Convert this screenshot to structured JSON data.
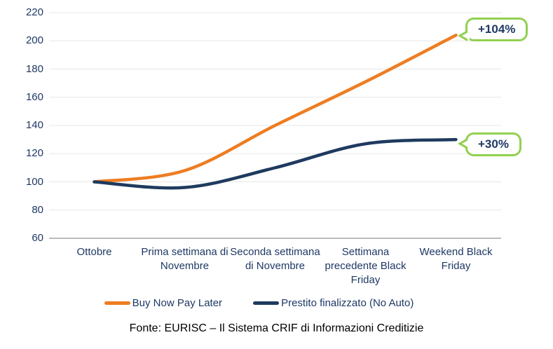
{
  "chart_data": {
    "type": "line",
    "categories": [
      "Ottobre",
      "Prima settimana di Novembre",
      "Seconda settimana di Novembre",
      "Settimana precedente Black Friday",
      "Weekend Black Friday"
    ],
    "xtick_labels": [
      "Ottobre",
      "Prima settimana di\nNovembre",
      "Seconda settimana\ndi Novembre",
      "Settimana\nprecedente Black\nFriday",
      "Weekend Black\nFriday"
    ],
    "series": [
      {
        "name": "Buy Now Pay Later",
        "color": "#EE7D22",
        "values": [
          100,
          108,
          140,
          171,
          204
        ],
        "end_callout": "+104%"
      },
      {
        "name": "Prestito finalizzato (No Auto)",
        "color": "#1F3A5F",
        "values": [
          100,
          96,
          110,
          127,
          130
        ],
        "end_callout": "+30%"
      }
    ],
    "yticks": [
      60,
      80,
      100,
      120,
      140,
      160,
      180,
      200,
      220
    ],
    "ylim": [
      60,
      220
    ],
    "xlabel": "",
    "ylabel": "",
    "title": "",
    "grid": true,
    "baseline_value": 100,
    "legend_position": "bottom"
  },
  "callouts": [
    {
      "label": "+104%"
    },
    {
      "label": "+30%"
    }
  ],
  "colors": {
    "grid": "#E7E7E7",
    "axis": "#A6A6A6",
    "text": "#1F3864",
    "callout_border": "#92D050",
    "bnpl_orange": "#EE7D22",
    "loan_navy": "#1F3A5F"
  },
  "footer": {
    "source_label": "Fonte: EURISC – Il Sistema CRIF di Informazioni Creditizie"
  }
}
